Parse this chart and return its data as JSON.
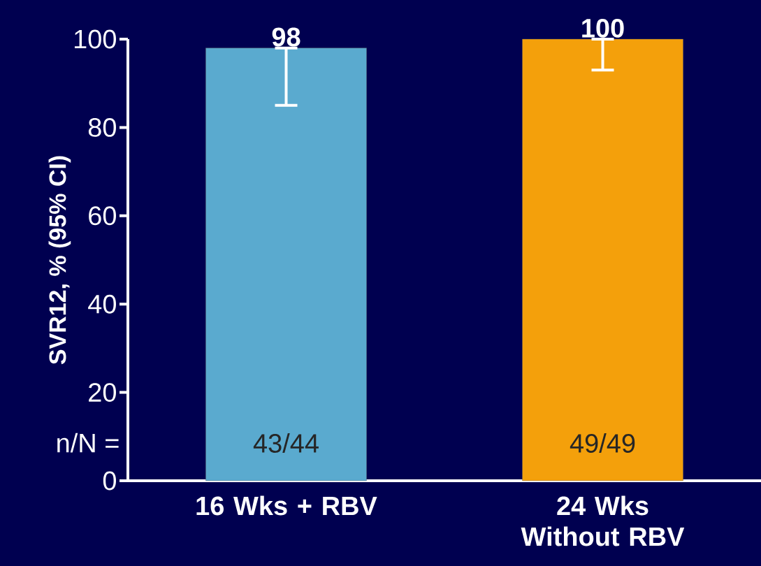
{
  "chart_data": {
    "type": "bar",
    "ylabel": "SVR12, % (95% CI)",
    "categories": [
      "16 Wks + RBV",
      "24 Wks Without RBV"
    ],
    "values": [
      98,
      100
    ],
    "colors": [
      "#5aaacf",
      "#f4a00b"
    ],
    "errors": [
      [
        85,
        98
      ],
      [
        93,
        100
      ]
    ],
    "data_labels": true,
    "ylim": [
      0,
      100
    ],
    "yticks": [
      0,
      20,
      40,
      60,
      80,
      100
    ],
    "annotations": [
      "n/N =",
      "43/44",
      "49/49"
    ]
  }
}
